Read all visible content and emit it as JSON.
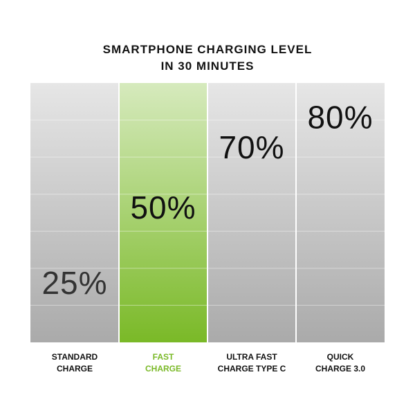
{
  "chart_data": {
    "type": "level",
    "title": "SMARTPHONE CHARGING LEVEL\nIN 30 MINUTES",
    "categories": [
      "STANDARD\nCHARGE",
      "FAST\nCHARGE",
      "ULTRA FAST\nCHARGE TYPE C",
      "QUICK\nCHARGE 3.0"
    ],
    "values": [
      25,
      50,
      70,
      80
    ],
    "value_labels": [
      "25%",
      "50%",
      "70%",
      "80%"
    ],
    "colors": [
      "#aaaaaa",
      "#7ab927",
      "#aaaaaa",
      "#aaaaaa"
    ],
    "top_colors": [
      "#e6e6e6",
      "#d6eabd",
      "#e6e6e6",
      "#e6e6e6"
    ],
    "label_colors": [
      "#333333",
      "#111111",
      "#111111",
      "#111111"
    ],
    "category_colors": [
      "#111111",
      "#7ab927",
      "#111111",
      "#111111"
    ]
  }
}
